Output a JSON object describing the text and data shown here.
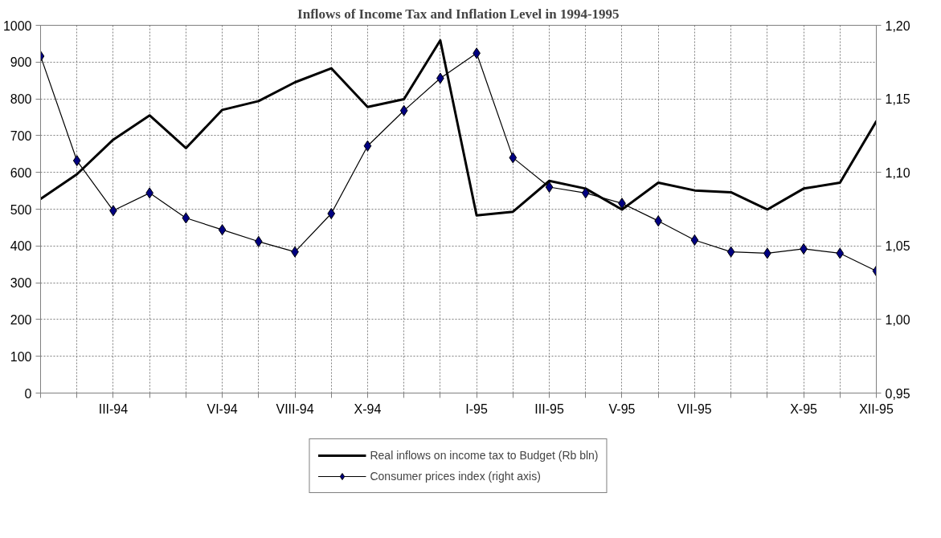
{
  "chart_data": {
    "type": "line",
    "title": "Inflows of Income Tax and Inflation Level in 1994-1995",
    "categories": [
      null,
      null,
      "III-94",
      null,
      null,
      "VI-94",
      null,
      "VIII-94",
      null,
      "X-94",
      null,
      null,
      "I-95",
      null,
      "III-95",
      null,
      "V-95",
      null,
      "VII-95",
      null,
      null,
      "X-95",
      null,
      "XII-95"
    ],
    "series": [
      {
        "name": "Real inflows on income tax to Budget (Rb bln)",
        "color": "#000000",
        "marker": "none",
        "axis": "y",
        "values": [
          528,
          595,
          689,
          755,
          666,
          770,
          794,
          845,
          883,
          778,
          799,
          959,
          483,
          493,
          577,
          556,
          499,
          572,
          551,
          546,
          499,
          556,
          572,
          739
        ]
      },
      {
        "name": "Consumer prices index (right axis)",
        "color": "#000080",
        "marker": "diamond",
        "axis": "y2",
        "values": [
          1.179,
          1.108,
          1.074,
          1.086,
          1.069,
          1.061,
          1.053,
          1.046,
          1.072,
          1.118,
          1.142,
          1.164,
          1.181,
          1.11,
          1.09,
          1.086,
          1.079,
          1.067,
          1.054,
          1.046,
          1.045,
          1.048,
          1.045,
          1.033
        ]
      }
    ],
    "ylim": [
      0,
      1000
    ],
    "yticks": [
      0,
      100,
      200,
      300,
      400,
      500,
      600,
      700,
      800,
      900,
      1000
    ],
    "y2lim": [
      0.95,
      1.2
    ],
    "y2ticks": [
      {
        "value": 0.95,
        "label": "0,95"
      },
      {
        "value": 1.0,
        "label": "1,00"
      },
      {
        "value": 1.05,
        "label": "1,05"
      },
      {
        "value": 1.1,
        "label": "1,10"
      },
      {
        "value": 1.15,
        "label": "1,15"
      },
      {
        "value": 1.2,
        "label": "1,20"
      }
    ],
    "grid": true,
    "legend": "bottom"
  }
}
